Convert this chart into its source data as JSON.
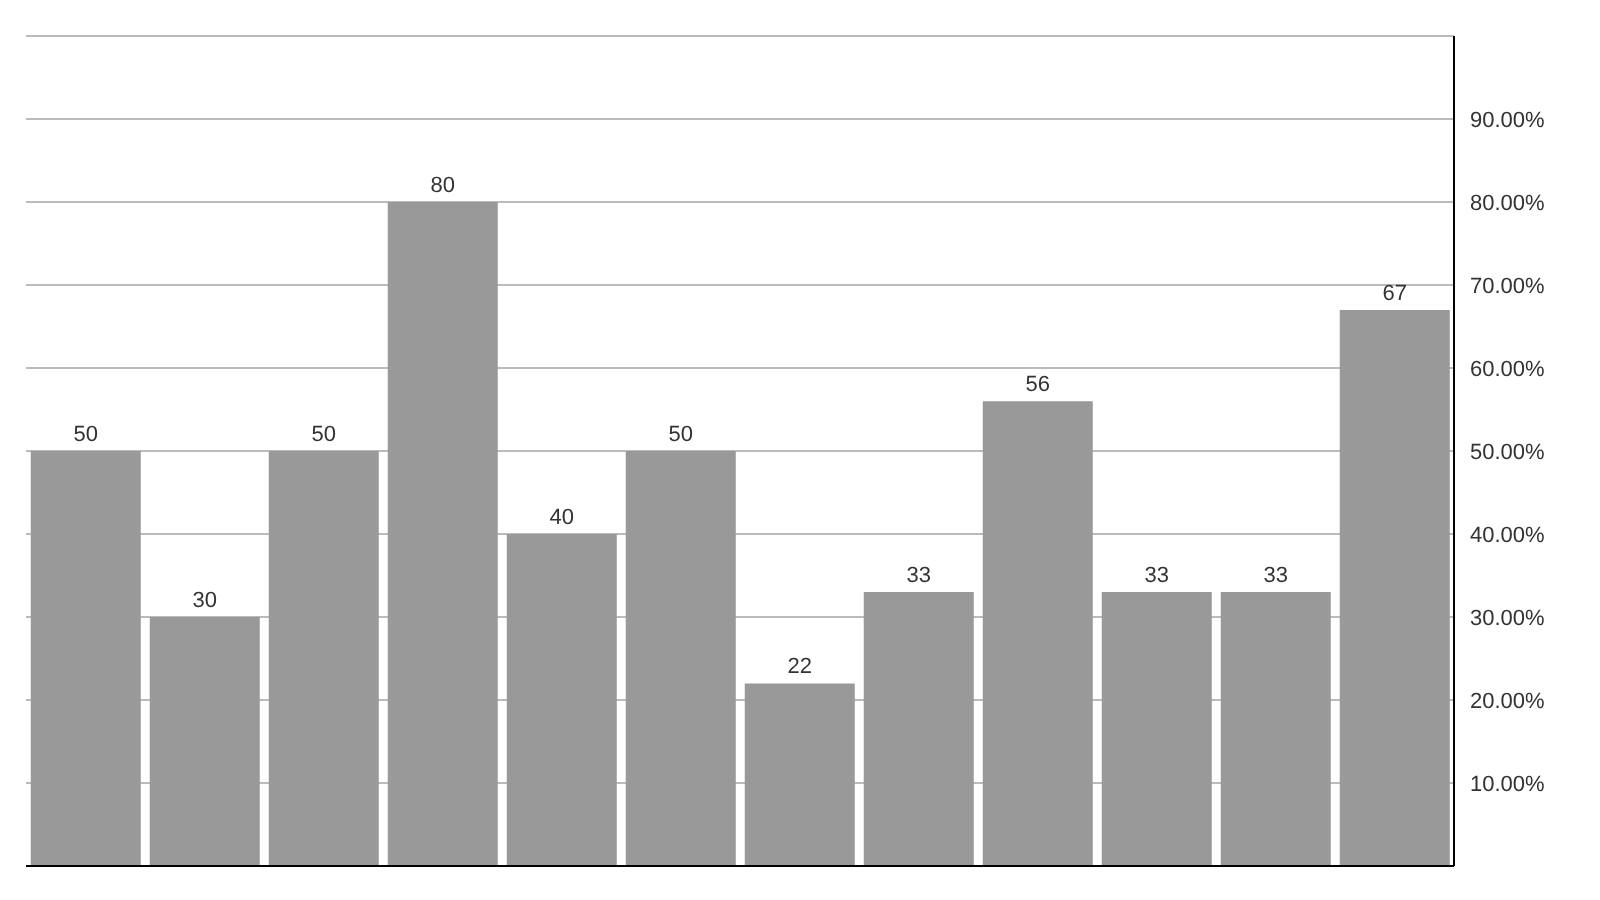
{
  "chart_data": {
    "type": "bar",
    "categories": [
      null,
      null,
      null,
      null,
      null,
      null,
      null,
      null,
      null,
      null,
      null,
      null
    ],
    "values": [
      50,
      30,
      50,
      80,
      40,
      50,
      22,
      33,
      56,
      33,
      33,
      67
    ],
    "color": "#999999",
    "data_labels": true,
    "grid": "y",
    "tick_labels": "y",
    "ylim": [
      0,
      100
    ],
    "yticks": [
      {
        "value": 10,
        "label": "10.00%"
      },
      {
        "value": 20,
        "label": "20.00%"
      },
      {
        "value": 30,
        "label": "30.00%"
      },
      {
        "value": 40,
        "label": "40.00%"
      },
      {
        "value": 50,
        "label": "50.00%"
      },
      {
        "value": 60,
        "label": "60.00%"
      },
      {
        "value": 70,
        "label": "70.00%"
      },
      {
        "value": 80,
        "label": "80.00%"
      },
      {
        "value": 90,
        "label": "90.00%"
      }
    ]
  }
}
